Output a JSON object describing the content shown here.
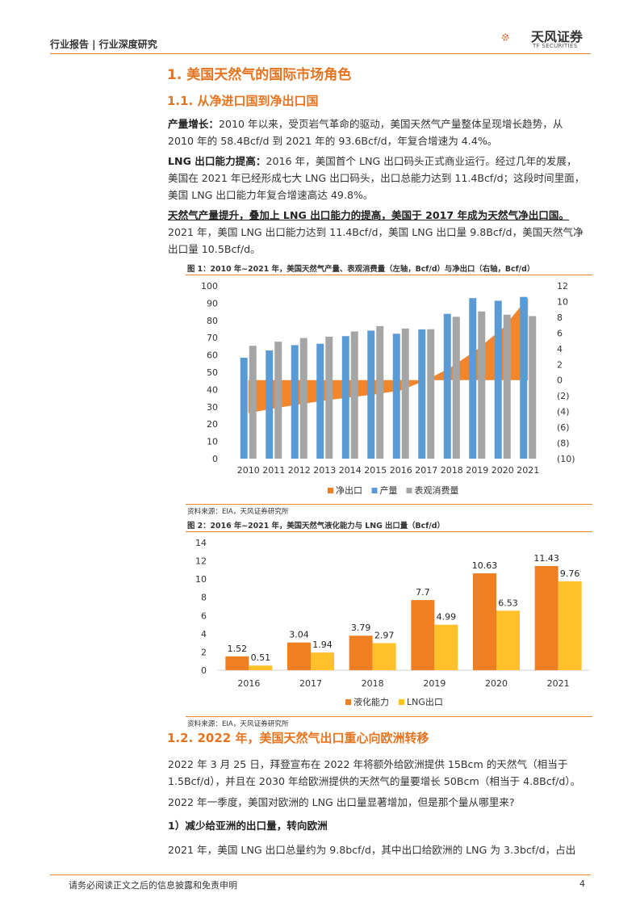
{
  "header": {
    "left": "行业报告 | 行业深度研究",
    "logo_cn": "天风证券",
    "logo_en": "TF SECURITIES"
  },
  "section1": {
    "title": "1. 美国天然气的国际市场角色"
  },
  "section11": {
    "title": "1.1. 从净进口国到净出口国"
  },
  "p1": {
    "bold": "产量增长：",
    "line1": "2010 年以来，受页岩气革命的驱动，美国天然气产量整体呈现增长趋势，从",
    "line2": "2010 年的 58.4Bcf/d 到 2021 年的 93.6Bcf/d，年复合增速为 4.4%。"
  },
  "p2": {
    "bold": "LNG 出口能力提高：",
    "line1": "2016 年，美国首个 LNG 出口码头正式商业运行。经过几年的发展，",
    "line2": "美国在 2021 年已经形成七大 LNG 出口码头，出口总能力达到 11.4Bcf/d；这段时间里面，",
    "line3": "美国 LNG 出口能力年复合增速高达 49.8%。"
  },
  "p3": {
    "bold": "天然气产量提升，叠加上 LNG 出口能力的提高，美国于 2017 年成为天然气净出口国。",
    "line1": "2021 年，美国 LNG 出口能力达到 11.4Bcf/d，美国 LNG 出口量 9.8Bcf/d，美国天然气净",
    "line2": "出口量 10.5Bcf/d。"
  },
  "fig1": {
    "title": "图 1：2010 年~2021 年，美国天然气产量、表观消费量（左轴，Bcf/d）与净出口（右轴，Bcf/d）",
    "source": "资料来源：EIA，天风证券研究所"
  },
  "fig2": {
    "title": "图 2：2016 年~2021 年，美国天然气液化能力与 LNG 出口量（Bcf/d）",
    "source": "资料来源：EIA，天风证券研究所"
  },
  "chart_data": [
    {
      "type": "bar",
      "categories": [
        "2010",
        "2011",
        "2012",
        "2013",
        "2014",
        "2015",
        "2016",
        "2017",
        "2018",
        "2019",
        "2020",
        "2021"
      ],
      "series": [
        {
          "name": "净出口",
          "kind": "area",
          "axis": "right",
          "values": [
            -4.2,
            -3.6,
            -3.1,
            -2.6,
            -2.2,
            -1.8,
            -1.3,
            0.0,
            1.7,
            3.9,
            6.6,
            10.5
          ]
        },
        {
          "name": "产量",
          "kind": "bar",
          "axis": "left",
          "values": [
            58.4,
            62.6,
            65.7,
            66.5,
            70.9,
            74.1,
            72.3,
            74.8,
            83.8,
            92.9,
            91.4,
            93.6
          ]
        },
        {
          "name": "表观消费量",
          "kind": "bar",
          "axis": "left",
          "values": [
            65.3,
            67.7,
            69.8,
            70.6,
            73.6,
            76.7,
            75.3,
            74.9,
            82.1,
            85.2,
            83.3,
            82.5
          ]
        }
      ],
      "ylim": [
        0,
        100
      ],
      "yticks": [
        "0",
        "10",
        "20",
        "30",
        "40",
        "50",
        "60",
        "70",
        "80",
        "90",
        "100"
      ],
      "y2lim": [
        -10,
        12
      ],
      "y2ticks": [
        "(10)",
        "(8)",
        "(6)",
        "(4)",
        "(2)",
        "0",
        "2",
        "4",
        "6",
        "8",
        "10",
        "12"
      ],
      "legend": "bottom",
      "colors": {
        "净出口": "#f07f22",
        "产量": "#5b9bd5",
        "表观消费量": "#a5a5a5"
      }
    },
    {
      "type": "bar",
      "categories": [
        "2016",
        "2017",
        "2018",
        "2019",
        "2020",
        "2021"
      ],
      "series": [
        {
          "name": "液化能力",
          "values": [
            1.52,
            3.04,
            3.79,
            7.7,
            10.63,
            11.43
          ],
          "labels": [
            "1.52",
            "3.04",
            "3.79",
            "7.7",
            "10.63",
            "11.43"
          ]
        },
        {
          "name": "LNG出口",
          "values": [
            0.51,
            1.94,
            2.97,
            4.99,
            6.53,
            9.76
          ],
          "labels": [
            "0.51",
            "1.94",
            "2.97",
            "4.99",
            "6.53",
            "9.76"
          ]
        }
      ],
      "ylim": [
        0,
        14
      ],
      "yticks": [
        "0",
        "2",
        "4",
        "6",
        "8",
        "10",
        "12",
        "14"
      ],
      "legend": "bottom",
      "colors": {
        "液化能力": "#f07f22",
        "LNG出口": "#ffc02a"
      }
    }
  ],
  "section12": {
    "title": "1.2. 2022 年，美国天然气出口重心向欧洲转移"
  },
  "p4": {
    "line1": "2022 年 3 月 25 日，拜登宣布在 2022 年将额外给欧洲提供 15Bcm 的天然气（相当于",
    "line2": "1.5Bcf/d），并且在 2030 年给欧洲提供的天然气的量要增长 50Bcm（相当于 4.8Bcf/d）。"
  },
  "p5": {
    "line1": "2022 年一季度，美国对欧洲的 LNG 出口量显著增加，但是那个量从哪里来?"
  },
  "p6": {
    "bold": "1）减少给亚洲的出口量，转向欧洲"
  },
  "p7": {
    "line1": "2021 年，美国 LNG 出口总量约为 9.8bcf/d，其中出口给欧洲的 LNG 为 3.3bcf/d，占出"
  },
  "footer": {
    "disclaimer": "请务必阅读正文之后的信息披露和免责申明",
    "page": "4"
  }
}
